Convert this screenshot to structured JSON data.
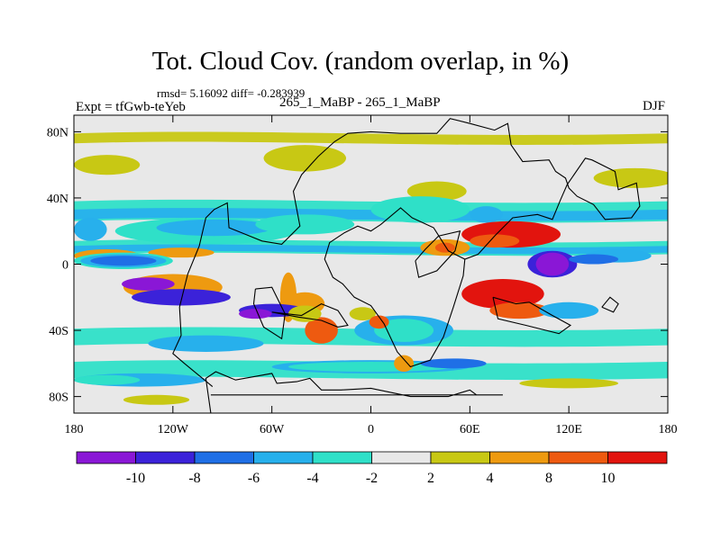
{
  "chart_data": {
    "type": "heatmap",
    "title": "Tot. Cloud Cov. (random overlap, in %)",
    "stats": "rmsd= 5.16092 diff= -0.283939",
    "experiment": "Expt = tfGwb-teYeb",
    "cases": "265_1_MaBP - 265_1_MaBP",
    "season": "DJF",
    "x_range": [
      -180,
      180
    ],
    "y_range": [
      -90,
      90
    ],
    "x_ticks": [
      {
        "value": -180,
        "label": "180"
      },
      {
        "value": -120,
        "label": "120W"
      },
      {
        "value": -60,
        "label": "60W"
      },
      {
        "value": 0,
        "label": "0"
      },
      {
        "value": 60,
        "label": "60E"
      },
      {
        "value": 120,
        "label": "120E"
      },
      {
        "value": 180,
        "label": "180"
      }
    ],
    "y_ticks": [
      {
        "value": 80,
        "label": "80N"
      },
      {
        "value": 40,
        "label": "40N"
      },
      {
        "value": 0,
        "label": "0"
      },
      {
        "value": -40,
        "label": "40S"
      },
      {
        "value": -80,
        "label": "80S"
      }
    ],
    "colorbar": {
      "colors": [
        "#8a17d6",
        "#3b22d9",
        "#1f6fe6",
        "#27b0ec",
        "#2fe0c8",
        "#e8e8e8",
        "#c8c814",
        "#ee9a10",
        "#ee5a10",
        "#e2140e"
      ],
      "levels": [
        -10,
        -8,
        -6,
        -4,
        -2,
        2,
        4,
        8,
        10
      ],
      "labels": [
        "-10",
        "-8",
        "-6",
        "-4",
        "-2",
        "2",
        "4",
        "8",
        "10"
      ]
    },
    "features": [
      {
        "level": 3,
        "lon": -170,
        "lat": 21,
        "rlon": 10,
        "rlat": 7
      },
      {
        "level": 4,
        "lon": -100,
        "lat": 20,
        "rlon": 55,
        "rlat": 8
      },
      {
        "level": 3,
        "lon": -95,
        "lat": 22,
        "rlon": 35,
        "rlat": 5
      },
      {
        "level": 4,
        "lon": -40,
        "lat": 24,
        "rlon": 30,
        "rlat": 6
      },
      {
        "level": 6,
        "lon": -160,
        "lat": 60,
        "rlon": 20,
        "rlat": 6
      },
      {
        "level": 6,
        "lon": -40,
        "lat": 64,
        "rlon": 25,
        "rlat": 8
      },
      {
        "level": 6,
        "lon": 40,
        "lat": 44,
        "rlon": 18,
        "rlat": 6
      },
      {
        "level": 6,
        "lon": 160,
        "lat": 52,
        "rlon": 25,
        "rlat": 6
      },
      {
        "level": 7,
        "lon": -160,
        "lat": 5,
        "rlon": 20,
        "rlat": 4
      },
      {
        "level": 7,
        "lon": -115,
        "lat": 7,
        "rlon": 20,
        "rlat": 3
      },
      {
        "level": 7,
        "lon": 45,
        "lat": 10,
        "rlon": 15,
        "rlat": 5
      },
      {
        "level": 8,
        "lon": 45,
        "lat": 10,
        "rlon": 6,
        "rlat": 3
      },
      {
        "level": 4,
        "lon": -150,
        "lat": 2,
        "rlon": 30,
        "rlat": 5
      },
      {
        "level": 3,
        "lon": -150,
        "lat": 2,
        "rlon": 26,
        "rlat": 4
      },
      {
        "level": 2,
        "lon": -150,
        "lat": 2,
        "rlon": 20,
        "rlat": 3
      },
      {
        "level": 4,
        "lon": 30,
        "lat": 33,
        "rlon": 30,
        "rlat": 8
      },
      {
        "level": 3,
        "lon": 70,
        "lat": 30,
        "rlon": 10,
        "rlat": 5
      },
      {
        "level": 1,
        "lon": 85,
        "lat": 20,
        "rlon": 12,
        "rlat": 4
      },
      {
        "level": 9,
        "lon": 85,
        "lat": 18,
        "rlon": 30,
        "rlat": 8
      },
      {
        "level": 8,
        "lon": 75,
        "lat": 14,
        "rlon": 15,
        "rlat": 4
      },
      {
        "level": 1,
        "lon": 110,
        "lat": 0,
        "rlon": 15,
        "rlat": 8
      },
      {
        "level": 0,
        "lon": 110,
        "lat": 0,
        "rlon": 10,
        "rlat": 7
      },
      {
        "level": 3,
        "lon": 150,
        "lat": 5,
        "rlon": 20,
        "rlat": 4
      },
      {
        "level": 2,
        "lon": 135,
        "lat": 3,
        "rlon": 15,
        "rlat": 3
      },
      {
        "level": 9,
        "lon": 80,
        "lat": -18,
        "rlon": 25,
        "rlat": 9
      },
      {
        "level": 8,
        "lon": 90,
        "lat": -28,
        "rlon": 18,
        "rlat": 5
      },
      {
        "level": 3,
        "lon": 120,
        "lat": -28,
        "rlon": 18,
        "rlat": 5
      },
      {
        "level": 7,
        "lon": -50,
        "lat": -20,
        "rlon": 5,
        "rlat": 15
      },
      {
        "level": 8,
        "lon": -30,
        "lat": -40,
        "rlon": 10,
        "rlat": 8
      },
      {
        "level": 7,
        "lon": -120,
        "lat": -14,
        "rlon": 30,
        "rlat": 8
      },
      {
        "level": 7,
        "lon": -40,
        "lat": -24,
        "rlon": 12,
        "rlat": 7
      },
      {
        "level": 0,
        "lon": -135,
        "lat": -12,
        "rlon": 16,
        "rlat": 4
      },
      {
        "level": 1,
        "lon": -115,
        "lat": -20,
        "rlon": 30,
        "rlat": 5
      },
      {
        "level": 1,
        "lon": -60,
        "lat": -28,
        "rlon": 20,
        "rlat": 4
      },
      {
        "level": 0,
        "lon": -70,
        "lat": -30,
        "rlon": 10,
        "rlat": 3
      },
      {
        "level": 3,
        "lon": -100,
        "lat": -48,
        "rlon": 35,
        "rlat": 5
      },
      {
        "level": 3,
        "lon": 0,
        "lat": -62,
        "rlon": 60,
        "rlat": 4
      },
      {
        "level": 4,
        "lon": 0,
        "lat": -62,
        "rlon": 50,
        "rlat": 3
      },
      {
        "level": 2,
        "lon": 20,
        "lat": -42,
        "rlon": 20,
        "rlat": 5
      },
      {
        "level": 3,
        "lon": 20,
        "lat": -40,
        "rlon": 30,
        "rlat": 9
      },
      {
        "level": 4,
        "lon": 20,
        "lat": -40,
        "rlon": 18,
        "rlat": 7
      },
      {
        "level": 2,
        "lon": 50,
        "lat": -60,
        "rlon": 20,
        "rlat": 3
      },
      {
        "level": 3,
        "lon": -140,
        "lat": -70,
        "rlon": 40,
        "rlat": 4
      },
      {
        "level": 4,
        "lon": -160,
        "lat": -70,
        "rlon": 20,
        "rlat": 3
      },
      {
        "level": 6,
        "lon": -130,
        "lat": -82,
        "rlon": 20,
        "rlat": 3
      },
      {
        "level": 6,
        "lon": 120,
        "lat": -72,
        "rlon": 30,
        "rlat": 3
      },
      {
        "level": 6,
        "lon": -40,
        "lat": -30,
        "rlon": 10,
        "rlat": 5
      },
      {
        "level": 6,
        "lon": -5,
        "lat": -30,
        "rlon": 8,
        "rlat": 4
      },
      {
        "level": 8,
        "lon": 5,
        "lat": -35,
        "rlon": 6,
        "rlat": 4
      },
      {
        "level": 7,
        "lon": 20,
        "lat": -60,
        "rlon": 6,
        "rlat": 5
      }
    ],
    "coastlines": [
      [
        [
          -97,
          -90
        ],
        [
          -100,
          -69
        ],
        [
          -94,
          -65
        ],
        [
          -82,
          -70
        ],
        [
          -60,
          -66
        ],
        [
          -57,
          -72
        ],
        [
          -45,
          -71
        ],
        [
          -37,
          -69
        ],
        [
          -30,
          -76
        ],
        [
          -18,
          -76
        ],
        [
          0,
          -75
        ],
        [
          24,
          -80
        ],
        [
          47,
          -80
        ],
        [
          60,
          -76
        ],
        [
          64,
          -79
        ],
        [
          80,
          -79
        ],
        [
          -97,
          -79
        ]
      ],
      [
        [
          -96,
          -74
        ],
        [
          -113,
          -60
        ],
        [
          -120,
          -54
        ],
        [
          -115,
          -43
        ],
        [
          -116,
          -26
        ],
        [
          -111,
          -6
        ],
        [
          -104,
          11
        ],
        [
          -100,
          28
        ],
        [
          -95,
          33
        ],
        [
          -87,
          37
        ],
        [
          -86,
          22
        ],
        [
          -76,
          18
        ],
        [
          -66,
          14
        ],
        [
          -54,
          12
        ],
        [
          -43,
          23
        ],
        [
          -47,
          44
        ],
        [
          -42,
          54
        ],
        [
          -32,
          65
        ],
        [
          -22,
          74
        ],
        [
          -14,
          79
        ],
        [
          0,
          80
        ],
        [
          18,
          79
        ],
        [
          40,
          79
        ],
        [
          48,
          88
        ],
        [
          60,
          85
        ],
        [
          75,
          81
        ],
        [
          83,
          85
        ],
        [
          85,
          72
        ],
        [
          92,
          62
        ],
        [
          108,
          63
        ],
        [
          112,
          56
        ],
        [
          118,
          52
        ],
        [
          120,
          46
        ],
        [
          125,
          41
        ],
        [
          135,
          36
        ],
        [
          142,
          27
        ],
        [
          158,
          28
        ],
        [
          163,
          35
        ],
        [
          161,
          49
        ],
        [
          150,
          45
        ],
        [
          148,
          56
        ],
        [
          134,
          63
        ],
        [
          130,
          64
        ],
        [
          119,
          48
        ],
        [
          115,
          39
        ],
        [
          110,
          27
        ],
        [
          101,
          30
        ],
        [
          86,
          28
        ],
        [
          75,
          17
        ],
        [
          65,
          6
        ],
        [
          57,
          3
        ],
        [
          47,
          8
        ],
        [
          38,
          22
        ],
        [
          25,
          28
        ],
        [
          18,
          34
        ],
        [
          6,
          24
        ],
        [
          0,
          20
        ],
        [
          -8,
          23
        ],
        [
          -16,
          19
        ],
        [
          -25,
          13
        ],
        [
          -28,
          3
        ],
        [
          -23,
          -8
        ],
        [
          -17,
          -12
        ],
        [
          -10,
          -20
        ],
        [
          0,
          -25
        ],
        [
          8,
          -36
        ],
        [
          16,
          -53
        ],
        [
          24,
          -62
        ],
        [
          36,
          -58
        ],
        [
          44,
          -44
        ],
        [
          50,
          -26
        ],
        [
          56,
          -7
        ],
        [
          57,
          3
        ]
      ],
      [
        [
          -70,
          -15
        ],
        [
          -60,
          -14
        ],
        [
          -52,
          -30
        ],
        [
          -54,
          -45
        ],
        [
          -65,
          -38
        ],
        [
          -71,
          -24
        ],
        [
          -70,
          -15
        ]
      ],
      [
        [
          -60,
          -29
        ],
        [
          -42,
          -31
        ],
        [
          -30,
          -24
        ],
        [
          -20,
          -28
        ],
        [
          -14,
          -37
        ],
        [
          -20,
          -38
        ],
        [
          -30,
          -34
        ],
        [
          -44,
          -32
        ],
        [
          -60,
          -29
        ]
      ],
      [
        [
          140,
          -26
        ],
        [
          145,
          -20
        ],
        [
          150,
          -24
        ],
        [
          147,
          -29
        ],
        [
          140,
          -26
        ]
      ],
      [
        [
          27,
          2
        ],
        [
          33,
          9
        ],
        [
          41,
          17
        ],
        [
          54,
          20
        ],
        [
          51,
          8
        ],
        [
          40,
          -4
        ],
        [
          29,
          -8
        ],
        [
          27,
          2
        ]
      ],
      [
        [
          74,
          -20
        ],
        [
          88,
          -24
        ],
        [
          96,
          -23
        ],
        [
          110,
          -31
        ],
        [
          121,
          -37
        ],
        [
          114,
          -42
        ],
        [
          94,
          -37
        ],
        [
          77,
          -33
        ],
        [
          74,
          -20
        ]
      ]
    ]
  }
}
